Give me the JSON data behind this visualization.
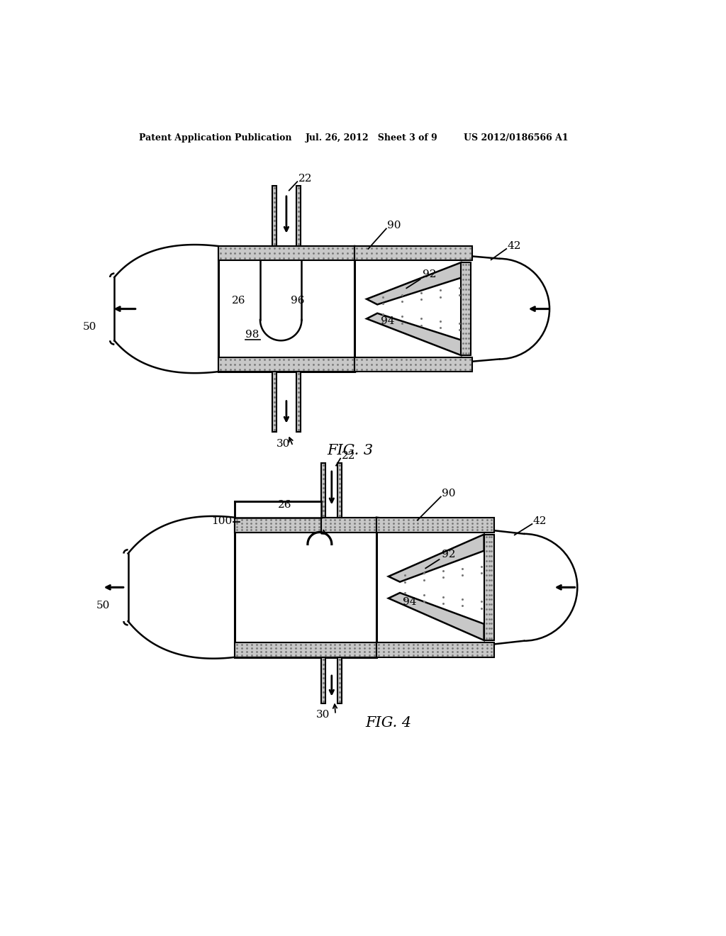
{
  "header_left": "Patent Application Publication",
  "header_mid": "Jul. 26, 2012   Sheet 3 of 9",
  "header_right": "US 2012/0186566 A1",
  "fig3_label": "FIG. 3",
  "fig4_label": "FIG. 4",
  "bg_color": "#ffffff",
  "line_color": "#000000",
  "stipple_color": "#c8c8c8",
  "labels_fig3": {
    "22": "22",
    "30": "30",
    "90": "90",
    "92": "92",
    "94": "94",
    "26": "26",
    "96": "96",
    "98": "98",
    "42": "42",
    "50": "50"
  },
  "labels_fig4": {
    "22": "22",
    "30": "30",
    "90": "90",
    "92": "92",
    "94": "94",
    "26": "26",
    "100": "100",
    "42": "42",
    "50": "50"
  }
}
